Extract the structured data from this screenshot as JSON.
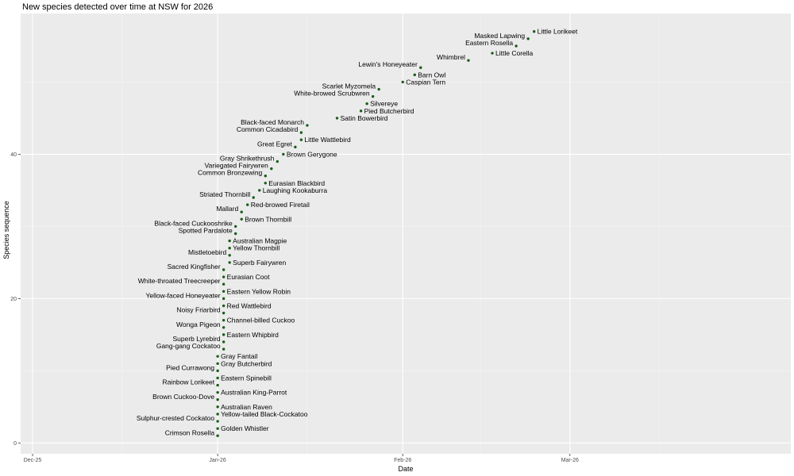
{
  "chart_data": {
    "type": "scatter",
    "title": "New species detected over time at NSW for 2026",
    "xlabel": "Date",
    "ylabel": "Species sequence",
    "x_ticks": [
      "Dec-25",
      "Jan-26",
      "Feb-26",
      "Mar-26"
    ],
    "y_ticks": [
      0,
      20,
      40
    ],
    "xlim": [
      "2025-11-29",
      "2026-04-07"
    ],
    "ylim": [
      -1.5,
      59.5
    ],
    "grid": true,
    "point_color": "#1a5c1a",
    "panel_color": "#ebebeb",
    "points": [
      {
        "date": "2026-01-01",
        "seq": 1,
        "label": "Crimson Rosella"
      },
      {
        "date": "2026-01-01",
        "seq": 2,
        "label": "Golden Whistler"
      },
      {
        "date": "2026-01-01",
        "seq": 3,
        "label": "Sulphur-crested Cockatoo"
      },
      {
        "date": "2026-01-01",
        "seq": 4,
        "label": "Yellow-tailed Black-Cockatoo"
      },
      {
        "date": "2026-01-01",
        "seq": 5,
        "label": "Australian Raven"
      },
      {
        "date": "2026-01-01",
        "seq": 6,
        "label": "Brown Cuckoo-Dove"
      },
      {
        "date": "2026-01-01",
        "seq": 7,
        "label": "Australian King-Parrot"
      },
      {
        "date": "2026-01-01",
        "seq": 8,
        "label": "Rainbow Lorikeet"
      },
      {
        "date": "2026-01-01",
        "seq": 9,
        "label": "Eastern Spinebill"
      },
      {
        "date": "2026-01-01",
        "seq": 10,
        "label": "Pied Currawong"
      },
      {
        "date": "2026-01-01",
        "seq": 11,
        "label": "Gray Butcherbird"
      },
      {
        "date": "2026-01-01",
        "seq": 12,
        "label": "Gray Fantail"
      },
      {
        "date": "2026-01-02",
        "seq": 13,
        "label": "Gang-gang Cockatoo"
      },
      {
        "date": "2026-01-02",
        "seq": 14,
        "label": "Superb Lyrebird"
      },
      {
        "date": "2026-01-02",
        "seq": 15,
        "label": "Eastern Whipbird"
      },
      {
        "date": "2026-01-02",
        "seq": 16,
        "label": "Wonga Pigeon"
      },
      {
        "date": "2026-01-02",
        "seq": 17,
        "label": "Channel-billed Cuckoo"
      },
      {
        "date": "2026-01-02",
        "seq": 18,
        "label": "Noisy Friarbird"
      },
      {
        "date": "2026-01-02",
        "seq": 19,
        "label": "Red Wattlebird"
      },
      {
        "date": "2026-01-02",
        "seq": 20,
        "label": "Yellow-faced Honeyeater"
      },
      {
        "date": "2026-01-02",
        "seq": 21,
        "label": "Eastern Yellow Robin"
      },
      {
        "date": "2026-01-02",
        "seq": 22,
        "label": "White-throated Treecreeper"
      },
      {
        "date": "2026-01-02",
        "seq": 23,
        "label": "Eurasian Coot"
      },
      {
        "date": "2026-01-02",
        "seq": 24,
        "label": "Sacred Kingfisher"
      },
      {
        "date": "2026-01-03",
        "seq": 25,
        "label": "Superb Fairywren"
      },
      {
        "date": "2026-01-03",
        "seq": 26,
        "label": "Mistletoebird"
      },
      {
        "date": "2026-01-03",
        "seq": 27,
        "label": "Yellow Thornbill"
      },
      {
        "date": "2026-01-03",
        "seq": 28,
        "label": "Australian Magpie"
      },
      {
        "date": "2026-01-04",
        "seq": 29,
        "label": "Spotted Pardalote"
      },
      {
        "date": "2026-01-04",
        "seq": 30,
        "label": "Black-faced Cuckooshrike"
      },
      {
        "date": "2026-01-05",
        "seq": 31,
        "label": "Brown Thornbill"
      },
      {
        "date": "2026-01-05",
        "seq": 32,
        "label": "Mallard"
      },
      {
        "date": "2026-01-06",
        "seq": 33,
        "label": "Red-browed Firetail"
      },
      {
        "date": "2026-01-07",
        "seq": 34,
        "label": "Striated Thornbill"
      },
      {
        "date": "2026-01-08",
        "seq": 35,
        "label": "Laughing Kookaburra"
      },
      {
        "date": "2026-01-09",
        "seq": 36,
        "label": "Eurasian Blackbird"
      },
      {
        "date": "2026-01-09",
        "seq": 37,
        "label": "Common Bronzewing"
      },
      {
        "date": "2026-01-10",
        "seq": 38,
        "label": "Variegated Fairywren"
      },
      {
        "date": "2026-01-11",
        "seq": 39,
        "label": "Gray Shrikethrush"
      },
      {
        "date": "2026-01-12",
        "seq": 40,
        "label": "Brown Gerygone"
      },
      {
        "date": "2026-01-14",
        "seq": 41,
        "label": "Great Egret"
      },
      {
        "date": "2026-01-15",
        "seq": 42,
        "label": "Little Wattlebird"
      },
      {
        "date": "2026-01-15",
        "seq": 43,
        "label": "Common Cicadabird"
      },
      {
        "date": "2026-01-16",
        "seq": 44,
        "label": "Black-faced Monarch"
      },
      {
        "date": "2026-01-21",
        "seq": 45,
        "label": "Satin Bowerbird"
      },
      {
        "date": "2026-01-25",
        "seq": 46,
        "label": "Pied Butcherbird"
      },
      {
        "date": "2026-01-26",
        "seq": 47,
        "label": "Silvereye"
      },
      {
        "date": "2026-01-27",
        "seq": 48,
        "label": "White-browed Scrubwren"
      },
      {
        "date": "2026-01-28",
        "seq": 49,
        "label": "Scarlet Myzomela"
      },
      {
        "date": "2026-02-01",
        "seq": 50,
        "label": "Caspian Tern"
      },
      {
        "date": "2026-02-03",
        "seq": 51,
        "label": "Barn Owl"
      },
      {
        "date": "2026-02-04",
        "seq": 52,
        "label": "Lewin's Honeyeater"
      },
      {
        "date": "2026-02-12",
        "seq": 53,
        "label": "Whimbrel"
      },
      {
        "date": "2026-02-16",
        "seq": 54,
        "label": "Little Corella"
      },
      {
        "date": "2026-02-20",
        "seq": 55,
        "label": "Eastern Rosella"
      },
      {
        "date": "2026-02-22",
        "seq": 56,
        "label": "Masked Lapwing"
      },
      {
        "date": "2026-02-23",
        "seq": 57,
        "label": "Little Lorikeet"
      }
    ]
  }
}
